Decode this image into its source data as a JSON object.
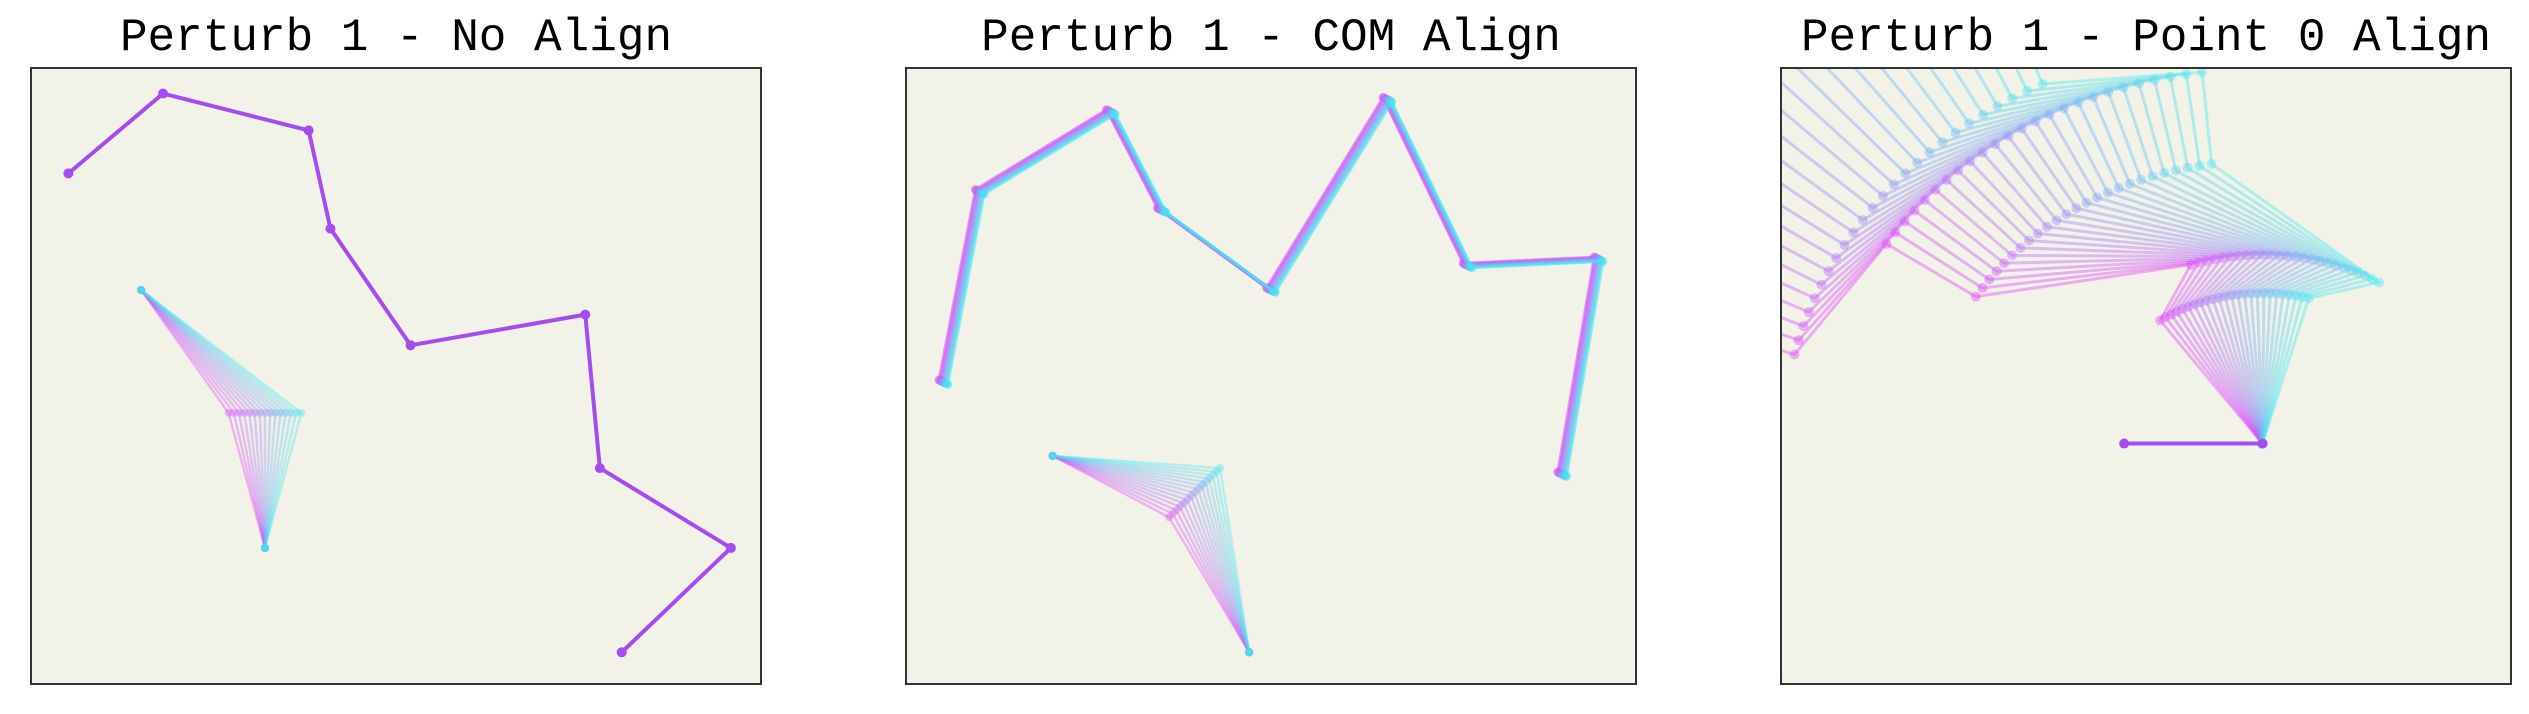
{
  "chart_data": [
    {
      "type": "line",
      "title": "Perturb 1 - No Align",
      "xlim": [
        0,
        1
      ],
      "ylim": [
        0,
        1
      ],
      "grid": false,
      "legend": "none",
      "colors": {
        "start": "#e040fb",
        "end": "#40e8f0"
      },
      "static_points": [
        [
          0.05,
          0.83
        ],
        [
          0.18,
          0.96
        ],
        [
          0.38,
          0.9
        ],
        [
          0.41,
          0.74
        ],
        [
          0.52,
          0.55
        ],
        [
          0.76,
          0.6
        ],
        [
          0.78,
          0.35
        ],
        [
          0.96,
          0.22
        ],
        [
          0.81,
          0.05
        ]
      ],
      "anchor": [
        0.15,
        0.64
      ],
      "moving_frames": 15,
      "moving_start": [
        [
          0.27,
          0.44
        ],
        [
          0.32,
          0.22
        ]
      ],
      "moving_end": [
        [
          0.37,
          0.44
        ],
        [
          0.32,
          0.22
        ]
      ]
    },
    {
      "type": "line",
      "title": "Perturb 1 - COM Align",
      "xlim": [
        0,
        1
      ],
      "ylim": [
        0,
        1
      ],
      "grid": false,
      "legend": "none",
      "colors": {
        "start": "#e040fb",
        "end": "#40e8f0"
      },
      "jitter_frames": 8,
      "static_points": [
        [
          0.05,
          0.49
        ],
        [
          0.1,
          0.8
        ],
        [
          0.28,
          0.93
        ],
        [
          0.35,
          0.77
        ],
        [
          0.5,
          0.64
        ],
        [
          0.66,
          0.95
        ],
        [
          0.77,
          0.68
        ],
        [
          0.95,
          0.69
        ],
        [
          0.9,
          0.34
        ]
      ],
      "moving_anchor": [
        0.2,
        0.37
      ],
      "moving_frames": 15,
      "moving_start": [
        [
          0.36,
          0.27
        ],
        [
          0.47,
          0.05
        ]
      ],
      "moving_end": [
        [
          0.43,
          0.35
        ],
        [
          0.47,
          0.05
        ]
      ]
    },
    {
      "type": "line",
      "title": "Perturb 1 - Point 0 Align",
      "xlim": [
        0,
        1
      ],
      "ylim": [
        0,
        1
      ],
      "grid": false,
      "legend": "none",
      "colors": {
        "start": "#e040fb",
        "end": "#40e8f0"
      },
      "fixed_points": [
        [
          0.66,
          0.39
        ],
        [
          0.47,
          0.39
        ]
      ],
      "frames": 25,
      "segment_lengths": [
        0.245,
        0.1,
        0.3,
        0.15,
        0.22,
        0.3,
        0.23
      ],
      "relative_turns_deg": [
        -75,
        -60,
        125,
        -45,
        90,
        -75,
        40
      ],
      "start_heading_deg": 200,
      "heading_sweep_deg": [
        0,
        -50
      ]
    }
  ]
}
